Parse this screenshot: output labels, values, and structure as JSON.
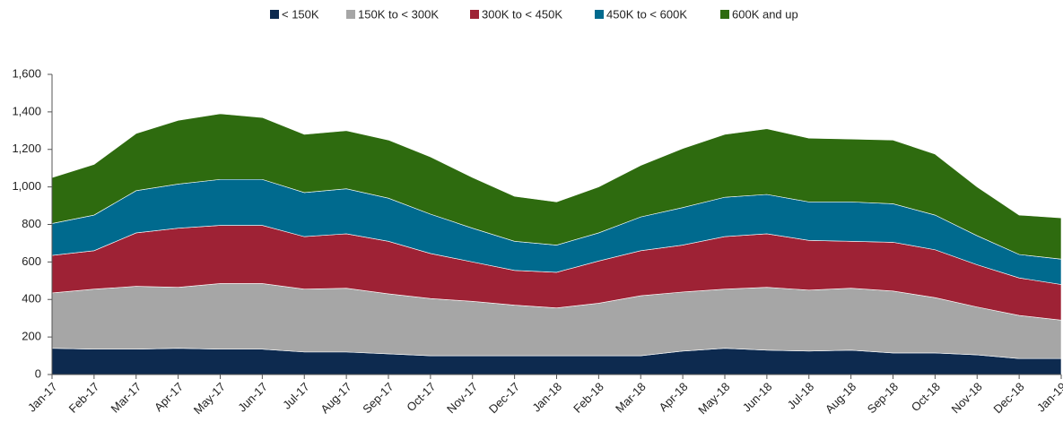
{
  "chart_data": {
    "type": "stacked_area",
    "categories": [
      "Jan-17",
      "Feb-17",
      "Mar-17",
      "Apr-17",
      "May-17",
      "Jun-17",
      "Jul-17",
      "Aug-17",
      "Sep-17",
      "Oct-17",
      "Nov-17",
      "Dec-17",
      "Jan-18",
      "Feb-18",
      "Mar-18",
      "Apr-18",
      "May-18",
      "Jun-18",
      "Jul-18",
      "Aug-18",
      "Sep-18",
      "Oct-18",
      "Nov-18",
      "Dec-18",
      "Jan-19"
    ],
    "series": [
      {
        "name": "< 150K",
        "color": "#0d2a4f",
        "values": [
          140,
          135,
          135,
          140,
          135,
          135,
          120,
          120,
          110,
          100,
          100,
          100,
          100,
          100,
          100,
          125,
          140,
          130,
          125,
          130,
          115,
          115,
          105,
          85,
          85
        ]
      },
      {
        "name": "150K to < 300K",
        "color": "#a6a6a6",
        "values": [
          295,
          320,
          335,
          325,
          350,
          350,
          335,
          340,
          320,
          305,
          290,
          270,
          255,
          280,
          320,
          315,
          315,
          335,
          325,
          330,
          330,
          295,
          255,
          230,
          205
        ]
      },
      {
        "name": "300K to < 450K",
        "color": "#9e2235",
        "values": [
          200,
          205,
          285,
          315,
          310,
          310,
          280,
          290,
          280,
          240,
          210,
          185,
          190,
          225,
          240,
          250,
          280,
          285,
          265,
          250,
          260,
          255,
          225,
          200,
          190
        ]
      },
      {
        "name": "450K to < 600K",
        "color": "#006a8e",
        "values": [
          170,
          190,
          225,
          235,
          245,
          245,
          235,
          240,
          230,
          210,
          180,
          155,
          145,
          150,
          180,
          200,
          210,
          210,
          205,
          210,
          205,
          185,
          155,
          125,
          135
        ]
      },
      {
        "name": "600K and up",
        "color": "#2e6b0f",
        "values": [
          245,
          270,
          305,
          340,
          350,
          330,
          310,
          310,
          310,
          305,
          270,
          240,
          230,
          245,
          275,
          315,
          335,
          350,
          340,
          335,
          340,
          325,
          260,
          210,
          220
        ]
      }
    ],
    "ylim": [
      0,
      1600
    ],
    "yticks": [
      0,
      200,
      400,
      600,
      800,
      {
        "value": 1000,
        "label": "1,000"
      },
      {
        "value": 1200,
        "label": "1,200"
      },
      {
        "value": 1400,
        "label": "1,400"
      },
      {
        "value": 1600,
        "label": "1,600"
      }
    ],
    "legend": "top"
  }
}
